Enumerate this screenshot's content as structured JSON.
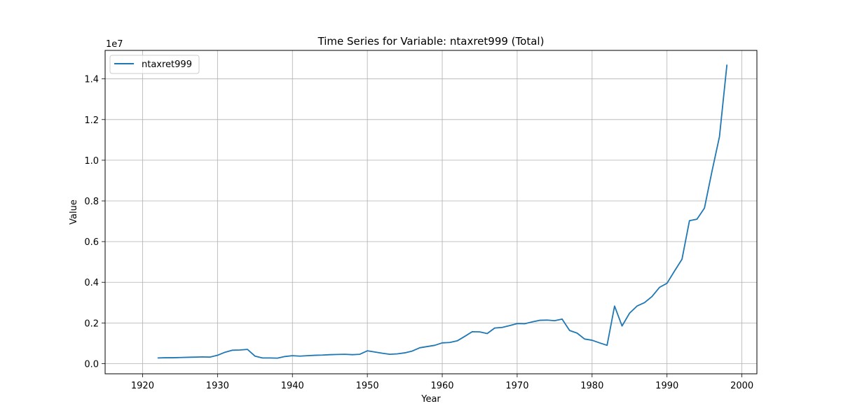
{
  "chart_data": {
    "type": "line",
    "title": "Time Series for Variable: ntaxret999 (Total)",
    "xlabel": "Year",
    "ylabel": "Value",
    "y_multiplier_label": "1e7",
    "xlim": [
      1915,
      2002
    ],
    "ylim": [
      -0.05,
      1.54
    ],
    "x_ticks": [
      1920,
      1930,
      1940,
      1950,
      1960,
      1970,
      1980,
      1990,
      2000
    ],
    "x_tick_labels": [
      "1920",
      "1930",
      "1940",
      "1950",
      "1960",
      "1970",
      "1980",
      "1990",
      "2000"
    ],
    "y_ticks": [
      0.0,
      0.2,
      0.4,
      0.6,
      0.8,
      1.0,
      1.2,
      1.4
    ],
    "y_tick_labels": [
      "0.0",
      "0.2",
      "0.4",
      "0.6",
      "0.8",
      "1.0",
      "1.2",
      "1.4"
    ],
    "grid": true,
    "legend_position": "top-left",
    "color": "#1f77b4",
    "series": [
      {
        "name": "ntaxret999",
        "x": [
          1922,
          1923,
          1924,
          1925,
          1926,
          1927,
          1928,
          1929,
          1930,
          1931,
          1932,
          1933,
          1934,
          1935,
          1936,
          1937,
          1938,
          1939,
          1940,
          1941,
          1942,
          1943,
          1944,
          1945,
          1946,
          1947,
          1948,
          1949,
          1950,
          1951,
          1952,
          1953,
          1954,
          1955,
          1956,
          1957,
          1958,
          1959,
          1960,
          1961,
          1962,
          1963,
          1964,
          1965,
          1966,
          1967,
          1968,
          1969,
          1970,
          1971,
          1972,
          1973,
          1974,
          1975,
          1976,
          1977,
          1978,
          1979,
          1980,
          1981,
          1982,
          1983,
          1984,
          1985,
          1986,
          1987,
          1988,
          1989,
          1990,
          1991,
          1992,
          1993,
          1994,
          1995,
          1996,
          1997,
          1998
        ],
        "values": [
          0.028,
          0.029,
          0.029,
          0.03,
          0.031,
          0.032,
          0.033,
          0.032,
          0.041,
          0.056,
          0.066,
          0.067,
          0.07,
          0.037,
          0.028,
          0.028,
          0.027,
          0.035,
          0.039,
          0.037,
          0.039,
          0.041,
          0.042,
          0.044,
          0.045,
          0.046,
          0.044,
          0.046,
          0.063,
          0.057,
          0.051,
          0.046,
          0.048,
          0.053,
          0.062,
          0.078,
          0.084,
          0.09,
          0.102,
          0.104,
          0.112,
          0.134,
          0.157,
          0.156,
          0.148,
          0.175,
          0.178,
          0.187,
          0.197,
          0.196,
          0.205,
          0.213,
          0.214,
          0.211,
          0.219,
          0.163,
          0.15,
          0.121,
          0.115,
          0.102,
          0.09,
          0.283,
          0.185,
          0.248,
          0.283,
          0.3,
          0.33,
          0.375,
          0.395,
          0.455,
          0.513,
          0.703,
          0.71,
          0.765,
          0.945,
          1.115,
          1.47
        ]
      }
    ]
  }
}
